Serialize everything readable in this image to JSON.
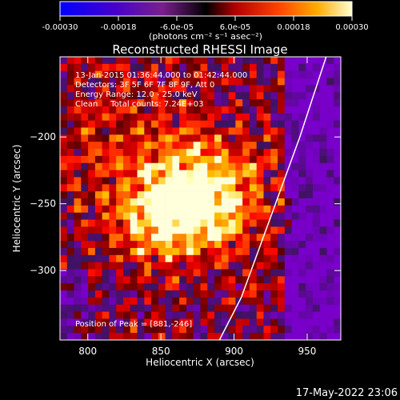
{
  "chart_data": {
    "type": "heatmap",
    "title": "Reconstructed RHESSI Image",
    "colorbar": {
      "ticks": [
        "-0.00030",
        "-0.00018",
        "-6.0e-05",
        "6.0e-05",
        "0.00018",
        "0.00030"
      ],
      "tick_values": [
        -0.0003,
        -0.00018,
        -6e-05,
        6e-05,
        0.00018,
        0.0003
      ],
      "range": [
        -0.0003,
        0.0003
      ],
      "units_label": "(photons cm⁻² s⁻¹ asec⁻²)"
    },
    "xlabel": "Heliocentric X (arcsec)",
    "ylabel": "Heliocentric Y (arcsec)",
    "xlim": [
      781,
      973
    ],
    "ylim": [
      -352,
      -140
    ],
    "xticks": [
      800,
      850,
      900,
      950
    ],
    "yticks": [
      -200,
      -250,
      -300
    ],
    "info_lines": [
      "13-Jan-2015 01:36:44.000 to 01:42:44.000",
      "Detectors: 3F 5F 6F 7F 8F 9F, Att 0",
      "Energy Range: 12.0 - 25.0 keV",
      "Clean     Total counts: 7.24E+03"
    ],
    "peak_label": "Position of Peak = [881,-246]",
    "peak": [
      881,
      -246
    ],
    "limb": [
      [
        963,
        -140
      ],
      [
        945,
        -200
      ],
      [
        925,
        -260
      ],
      [
        905,
        -320
      ],
      [
        890,
        -352
      ]
    ]
  },
  "footer": {
    "date": "17-May-2022 23:06"
  }
}
